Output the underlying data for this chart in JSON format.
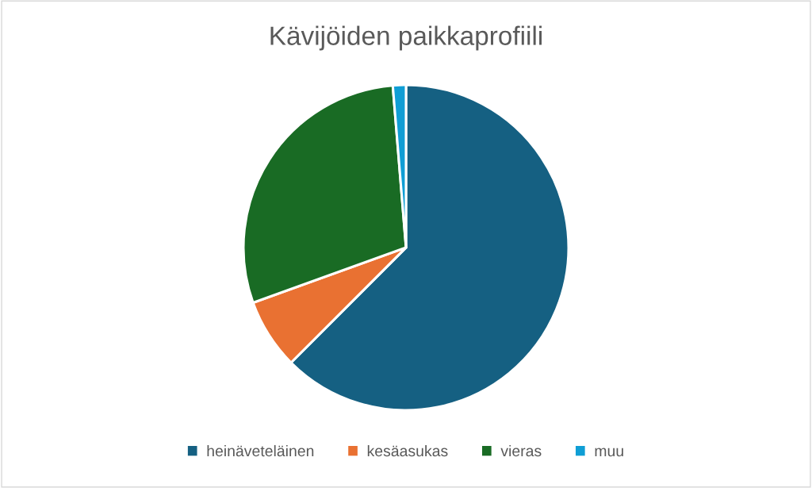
{
  "chart_data": {
    "type": "pie",
    "title": "Kävijöiden paikkaprofiili",
    "categories": [
      "heinäveteläinen",
      "kesäasukas",
      "vieras",
      "muu"
    ],
    "values": [
      62.5,
      7.0,
      29.2,
      1.3
    ],
    "colors": [
      "#156082",
      "#e97132",
      "#196b24",
      "#0f9ed5"
    ],
    "legend": "bottom"
  }
}
